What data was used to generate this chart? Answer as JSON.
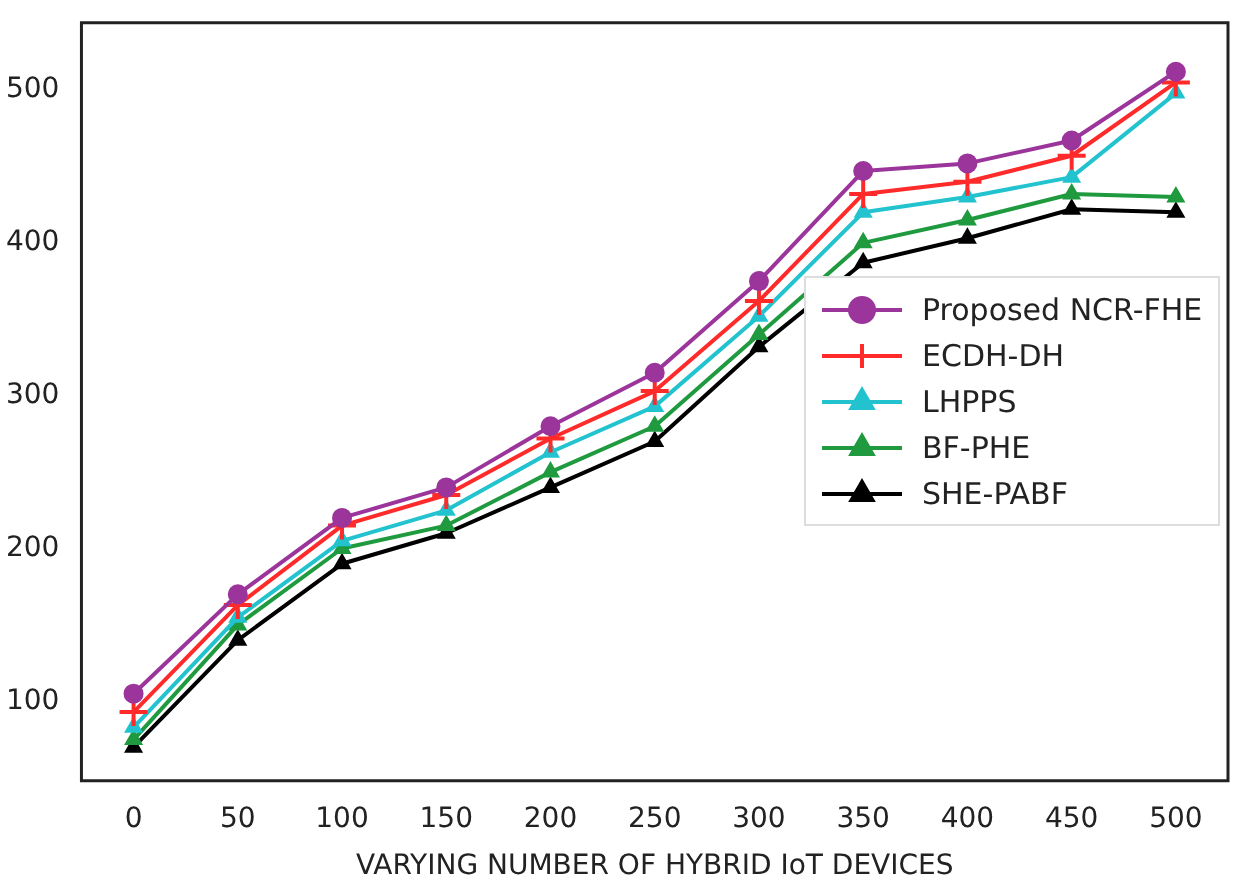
{
  "chart_data": {
    "type": "line",
    "xlabel": "VARYING NUMBER OF HYBRID IoT DEVICES",
    "categories": [
      "0",
      "50",
      "100",
      "150",
      "200",
      "250",
      "300",
      "350",
      "400",
      "450",
      "500"
    ],
    "series": [
      {
        "name": "Proposed NCR-FHE",
        "color": "#9b359b",
        "marker": "circle",
        "values": [
          105,
          170,
          220,
          240,
          280,
          315,
          375,
          447,
          452,
          467,
          512
        ]
      },
      {
        "name": "ECDH-DH",
        "color": "#ff2a2a",
        "marker": "cross",
        "values": [
          93,
          163,
          215,
          235,
          272,
          303,
          362,
          432,
          440,
          457,
          505
        ]
      },
      {
        "name": "LHPPS",
        "color": "#22c3cf",
        "marker": "triangle",
        "values": [
          83,
          155,
          205,
          225,
          263,
          293,
          352,
          420,
          430,
          443,
          498
        ]
      },
      {
        "name": "BF-PHE",
        "color": "#1f9a3f",
        "marker": "triangle",
        "values": [
          75,
          150,
          200,
          215,
          250,
          280,
          340,
          400,
          415,
          432,
          430
        ]
      },
      {
        "name": "SHE-PABF",
        "color": "#000000",
        "marker": "triangle",
        "values": [
          70,
          140,
          190,
          210,
          240,
          270,
          332,
          387,
          403,
          422,
          420
        ]
      }
    ],
    "ylim": [
      48,
      544
    ],
    "yticks": [
      100,
      200,
      300,
      400,
      500
    ],
    "grid": false,
    "legend": "right",
    "line_style": "solid"
  }
}
